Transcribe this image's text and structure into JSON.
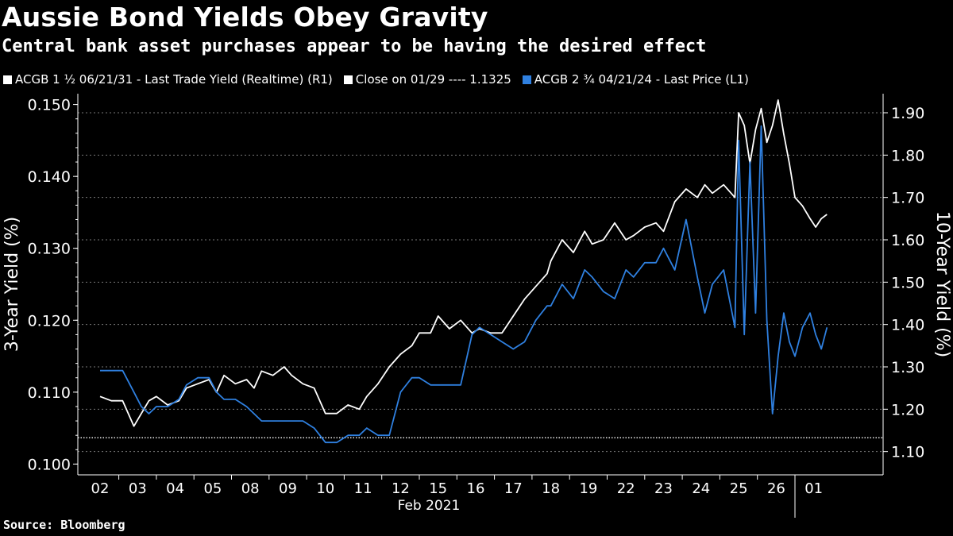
{
  "title": "Aussie Bond Yields Obey Gravity",
  "subtitle": "Central bank asset purchases appear to be having the desired effect",
  "source": "Source: Bloomberg",
  "legend": [
    {
      "label": "ACGB 1 ½ 06/21/31 - Last Trade Yield (Realtime) (R1)",
      "color": "#ffffff"
    },
    {
      "label": "Close on 01/29 ---- 1.1325",
      "color": "#ffffff"
    },
    {
      "label": "ACGB 2 ¾ 04/21/24 - Last Price (L1)",
      "color": "#2f80e0"
    }
  ],
  "chart_data": {
    "type": "line",
    "title": "Aussie Bond Yields Obey Gravity",
    "xlabel": "Feb 2021",
    "ylabel_left": "3-Year Yield (%)",
    "ylabel_right": "10-Year Yield (%)",
    "categories": [
      "02",
      "03",
      "04",
      "05",
      "08",
      "09",
      "10",
      "11",
      "12",
      "15",
      "16",
      "17",
      "18",
      "19",
      "22",
      "23",
      "24",
      "25",
      "26",
      "01"
    ],
    "ylim_left": [
      0.0985,
      0.1515
    ],
    "yticks_left": [
      "0.100",
      "0.110",
      "0.120",
      "0.130",
      "0.140",
      "0.150"
    ],
    "ylim_right": [
      1.045,
      1.945
    ],
    "yticks_right": [
      "1.10",
      "1.20",
      "1.30",
      "1.40",
      "1.50",
      "1.60",
      "1.70",
      "1.80",
      "1.90"
    ],
    "reference_line": {
      "label": "Close on 01/29",
      "value": 1.1325,
      "axis": "right"
    },
    "series": [
      {
        "name": "ACGB 1 ½ 06/21/31 - Last Trade Yield (Realtime) (R1)",
        "axis": "right",
        "color": "#ffffff",
        "x": [
          0,
          0.3,
          0.6,
          0.9,
          1.1,
          1.3,
          1.5,
          1.8,
          2.1,
          2.3,
          2.6,
          2.9,
          3.1,
          3.3,
          3.6,
          3.9,
          4.1,
          4.3,
          4.6,
          4.9,
          5.1,
          5.4,
          5.7,
          6.0,
          6.3,
          6.6,
          6.9,
          7.1,
          7.4,
          7.7,
          8.0,
          8.3,
          8.5,
          8.8,
          9.0,
          9.3,
          9.6,
          9.9,
          10.1,
          10.4,
          10.7,
          11.0,
          11.3,
          11.6,
          11.9,
          12.0,
          12.3,
          12.6,
          12.9,
          13.1,
          13.4,
          13.7,
          14.0,
          14.2,
          14.5,
          14.8,
          15.0,
          15.3,
          15.6,
          15.9,
          16.1,
          16.3,
          16.6,
          16.9,
          17.0,
          17.15,
          17.3,
          17.45,
          17.6,
          17.75,
          17.9,
          18.05,
          18.2,
          18.35,
          18.5,
          18.7,
          18.9,
          19.05,
          19.2,
          19.35
        ],
        "values": [
          1.23,
          1.22,
          1.22,
          1.16,
          1.19,
          1.22,
          1.23,
          1.21,
          1.22,
          1.25,
          1.26,
          1.27,
          1.24,
          1.28,
          1.26,
          1.27,
          1.25,
          1.29,
          1.28,
          1.3,
          1.28,
          1.26,
          1.25,
          1.19,
          1.19,
          1.21,
          1.2,
          1.23,
          1.26,
          1.3,
          1.33,
          1.35,
          1.38,
          1.38,
          1.42,
          1.39,
          1.41,
          1.38,
          1.39,
          1.38,
          1.38,
          1.42,
          1.46,
          1.49,
          1.52,
          1.55,
          1.6,
          1.57,
          1.62,
          1.59,
          1.6,
          1.64,
          1.6,
          1.61,
          1.63,
          1.64,
          1.62,
          1.69,
          1.72,
          1.7,
          1.73,
          1.71,
          1.73,
          1.7,
          1.9,
          1.87,
          1.78,
          1.86,
          1.91,
          1.83,
          1.87,
          1.93,
          1.85,
          1.78,
          1.7,
          1.68,
          1.65,
          1.63,
          1.65,
          1.66
        ]
      },
      {
        "name": "ACGB 2 ¾ 04/21/24 - Last Price (L1)",
        "axis": "left",
        "color": "#2f80e0",
        "x": [
          0,
          0.3,
          0.6,
          0.9,
          1.1,
          1.3,
          1.5,
          1.8,
          2.1,
          2.3,
          2.6,
          2.9,
          3.1,
          3.3,
          3.6,
          3.9,
          4.1,
          4.3,
          4.6,
          4.9,
          5.1,
          5.4,
          5.7,
          6.0,
          6.3,
          6.6,
          6.9,
          7.1,
          7.4,
          7.7,
          8.0,
          8.3,
          8.5,
          8.8,
          9.0,
          9.3,
          9.6,
          9.9,
          10.1,
          10.4,
          10.7,
          11.0,
          11.3,
          11.6,
          11.9,
          12.0,
          12.3,
          12.6,
          12.9,
          13.1,
          13.4,
          13.7,
          14.0,
          14.2,
          14.5,
          14.8,
          15.0,
          15.3,
          15.6,
          15.9,
          16.1,
          16.3,
          16.6,
          16.9,
          17.0,
          17.15,
          17.3,
          17.45,
          17.6,
          17.75,
          17.9,
          18.05,
          18.2,
          18.35,
          18.5,
          18.7,
          18.9,
          19.05,
          19.2,
          19.35
        ],
        "values": [
          0.113,
          0.113,
          0.113,
          0.11,
          0.108,
          0.107,
          0.108,
          0.108,
          0.109,
          0.111,
          0.112,
          0.112,
          0.11,
          0.109,
          0.109,
          0.108,
          0.107,
          0.106,
          0.106,
          0.106,
          0.106,
          0.106,
          0.105,
          0.103,
          0.103,
          0.104,
          0.104,
          0.105,
          0.104,
          0.104,
          0.11,
          0.112,
          0.112,
          0.111,
          0.111,
          0.111,
          0.111,
          0.118,
          0.119,
          0.118,
          0.117,
          0.116,
          0.117,
          0.12,
          0.122,
          0.122,
          0.125,
          0.123,
          0.127,
          0.126,
          0.124,
          0.123,
          0.127,
          0.126,
          0.128,
          0.128,
          0.13,
          0.127,
          0.134,
          0.126,
          0.121,
          0.125,
          0.127,
          0.119,
          0.145,
          0.118,
          0.142,
          0.121,
          0.147,
          0.12,
          0.107,
          0.115,
          0.121,
          0.117,
          0.115,
          0.119,
          0.121,
          0.118,
          0.116,
          0.119
        ]
      }
    ]
  }
}
